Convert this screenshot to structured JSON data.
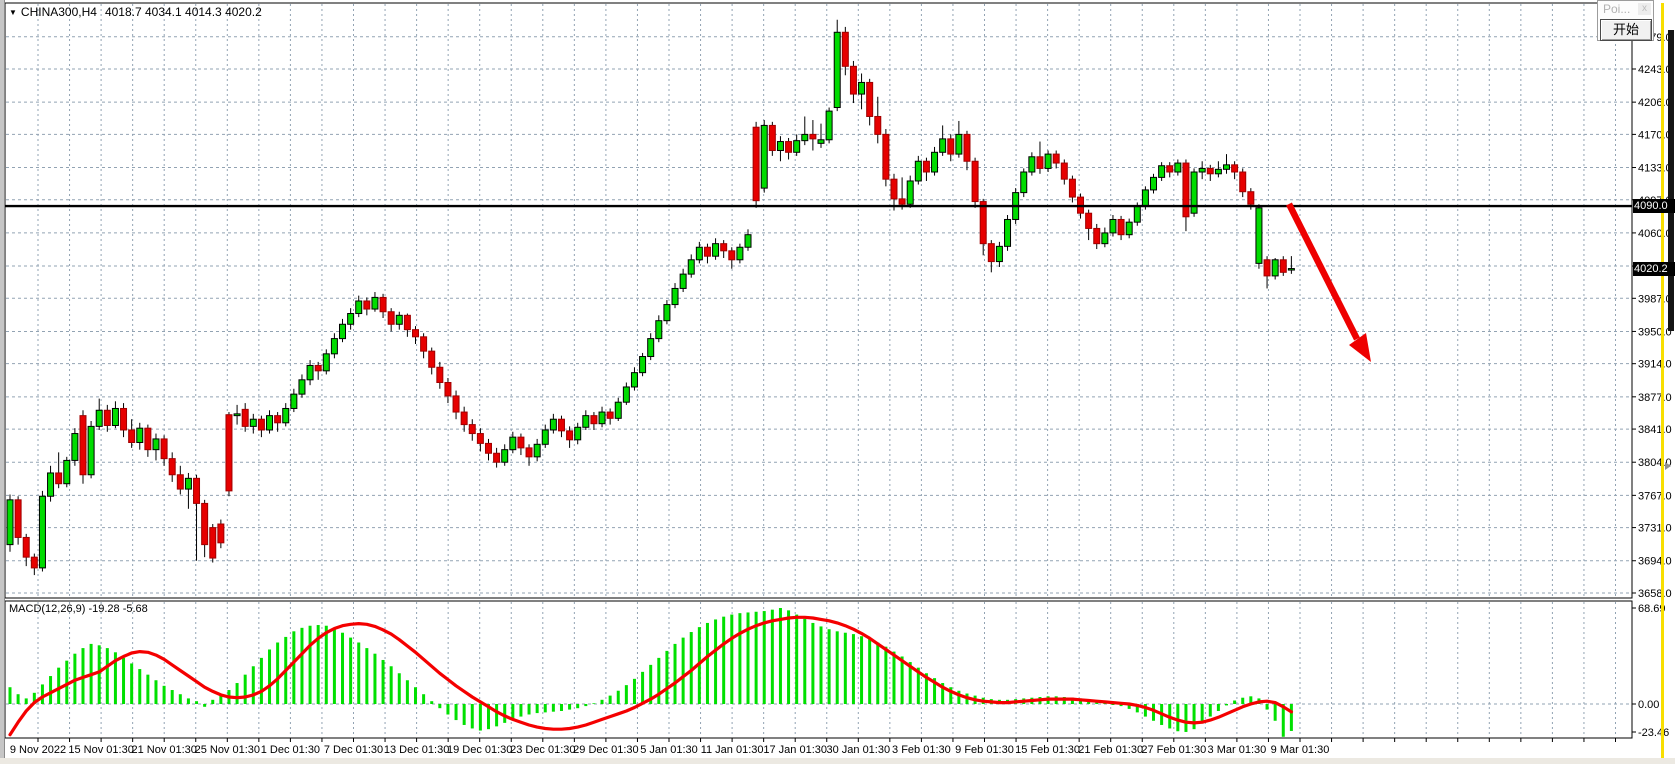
{
  "app": {
    "popup": {
      "title": "Poi...",
      "close": "x",
      "button": "开始"
    }
  },
  "chart": {
    "title": {
      "dropdown": "▼",
      "symbol": "CHINA300,H4",
      "quote": "4018.7 4034.1 4014.3 4020.2"
    },
    "price_axis": {
      "labels": [
        "4279.0",
        "4243.0",
        "4206.0",
        "4170.0",
        "4133.0",
        "4097.0",
        "4060.0",
        "4023.0",
        "3987.0",
        "3950.0",
        "3914.0",
        "3877.0",
        "3841.0",
        "3804.0",
        "3767.0",
        "3731.0",
        "3694.0",
        "3658.0"
      ],
      "line_badge": "4090.0",
      "price_badge": "4020.2"
    },
    "time_axis": {
      "labels": [
        "9 Nov 2022",
        "15 Nov 01:30",
        "21 Nov 01:30",
        "25 Nov 01:30",
        "1 Dec 01:30",
        "7 Dec 01:30",
        "13 Dec 01:30",
        "19 Dec 01:30",
        "23 Dec 01:30",
        "29 Dec 01:30",
        "5 Jan 01:30",
        "11 Jan 01:30",
        "17 Jan 01:30",
        "30 Jan 01:30",
        "3 Feb 01:30",
        "9 Feb 01:30",
        "15 Feb 01:30",
        "21 Feb 01:30",
        "27 Feb 01:30",
        "3 Mar 01:30",
        "9 Mar 01:30"
      ]
    },
    "macd_panel": {
      "label": "MACD(12,26,9) -19.28 -5.68",
      "scale": {
        "max": "68.69",
        "zero": "0.00",
        "min": "-23.46"
      }
    }
  },
  "chart_data": {
    "type": "candlestick",
    "symbol": "CHINA300",
    "timeframe": "H4",
    "last_quote": {
      "open": 4018.7,
      "high": 4034.1,
      "low": 4014.3,
      "close": 4020.2
    },
    "ohlc": [
      [
        3712,
        3768,
        3704,
        3762
      ],
      [
        3762,
        3766,
        3712,
        3720
      ],
      [
        3720,
        3724,
        3688,
        3698
      ],
      [
        3698,
        3702,
        3678,
        3686
      ],
      [
        3686,
        3772,
        3682,
        3766
      ],
      [
        3766,
        3800,
        3760,
        3792
      ],
      [
        3792,
        3815,
        3775,
        3780
      ],
      [
        3780,
        3810,
        3776,
        3806
      ],
      [
        3806,
        3842,
        3800,
        3836
      ],
      [
        3856,
        3862,
        3780,
        3790
      ],
      [
        3790,
        3850,
        3786,
        3844
      ],
      [
        3844,
        3875,
        3840,
        3862
      ],
      [
        3862,
        3868,
        3838,
        3845
      ],
      [
        3845,
        3872,
        3842,
        3864
      ],
      [
        3864,
        3870,
        3832,
        3840
      ],
      [
        3840,
        3852,
        3820,
        3826
      ],
      [
        3826,
        3848,
        3818,
        3842
      ],
      [
        3842,
        3846,
        3810,
        3818
      ],
      [
        3818,
        3836,
        3806,
        3830
      ],
      [
        3830,
        3834,
        3800,
        3808
      ],
      [
        3808,
        3815,
        3782,
        3790
      ],
      [
        3790,
        3800,
        3768,
        3774
      ],
      [
        3774,
        3792,
        3752,
        3786
      ],
      [
        3786,
        3790,
        3694,
        3758
      ],
      [
        3758,
        3762,
        3698,
        3712
      ],
      [
        3731,
        3735,
        3692,
        3697
      ],
      [
        3735,
        3740,
        3708,
        3714
      ],
      [
        3857,
        3860,
        3766,
        3772
      ],
      [
        3856,
        3868,
        3846,
        3858
      ],
      [
        3863,
        3870,
        3838,
        3844
      ],
      [
        3844,
        3858,
        3836,
        3852
      ],
      [
        3852,
        3856,
        3832,
        3840
      ],
      [
        3840,
        3862,
        3836,
        3856
      ],
      [
        3856,
        3860,
        3838,
        3848
      ],
      [
        3848,
        3870,
        3844,
        3864
      ],
      [
        3864,
        3886,
        3860,
        3880
      ],
      [
        3880,
        3902,
        3876,
        3896
      ],
      [
        3896,
        3918,
        3890,
        3912
      ],
      [
        3912,
        3916,
        3896,
        3906
      ],
      [
        3906,
        3930,
        3902,
        3925
      ],
      [
        3925,
        3948,
        3920,
        3942
      ],
      [
        3942,
        3964,
        3938,
        3958
      ],
      [
        3958,
        3976,
        3952,
        3970
      ],
      [
        3970,
        3990,
        3966,
        3984
      ],
      [
        3984,
        3988,
        3968,
        3975
      ],
      [
        3975,
        3994,
        3972,
        3988
      ],
      [
        3988,
        3992,
        3965,
        3972
      ],
      [
        3972,
        3976,
        3950,
        3958
      ],
      [
        3958,
        3972,
        3952,
        3968
      ],
      [
        3968,
        3970,
        3944,
        3952
      ],
      [
        3952,
        3956,
        3936,
        3944
      ],
      [
        3944,
        3948,
        3920,
        3928
      ],
      [
        3928,
        3932,
        3902,
        3910
      ],
      [
        3910,
        3916,
        3886,
        3893
      ],
      [
        3893,
        3898,
        3870,
        3878
      ],
      [
        3878,
        3884,
        3852,
        3860
      ],
      [
        3860,
        3866,
        3838,
        3846
      ],
      [
        3846,
        3852,
        3828,
        3836
      ],
      [
        3836,
        3842,
        3816,
        3825
      ],
      [
        3825,
        3830,
        3806,
        3814
      ],
      [
        3814,
        3820,
        3798,
        3804
      ],
      [
        3804,
        3824,
        3800,
        3818
      ],
      [
        3818,
        3838,
        3814,
        3832
      ],
      [
        3832,
        3836,
        3812,
        3820
      ],
      [
        3820,
        3824,
        3800,
        3810
      ],
      [
        3810,
        3830,
        3805,
        3824
      ],
      [
        3824,
        3846,
        3820,
        3840
      ],
      [
        3840,
        3858,
        3836,
        3852
      ],
      [
        3852,
        3856,
        3832,
        3839
      ],
      [
        3839,
        3844,
        3820,
        3829
      ],
      [
        3829,
        3848,
        3824,
        3843
      ],
      [
        3843,
        3862,
        3840,
        3856
      ],
      [
        3856,
        3860,
        3840,
        3847
      ],
      [
        3847,
        3866,
        3843,
        3860
      ],
      [
        3860,
        3864,
        3846,
        3853
      ],
      [
        3853,
        3876,
        3850,
        3871
      ],
      [
        3871,
        3893,
        3868,
        3888
      ],
      [
        3888,
        3910,
        3884,
        3904
      ],
      [
        3904,
        3926,
        3900,
        3922
      ],
      [
        3922,
        3948,
        3918,
        3942
      ],
      [
        3942,
        3968,
        3938,
        3962
      ],
      [
        3962,
        3985,
        3958,
        3980
      ],
      [
        3980,
        4004,
        3976,
        3998
      ],
      [
        3998,
        4020,
        3994,
        4014
      ],
      [
        4014,
        4036,
        4010,
        4030
      ],
      [
        4030,
        4050,
        4026,
        4044
      ],
      [
        4044,
        4048,
        4026,
        4034
      ],
      [
        4034,
        4054,
        4030,
        4048
      ],
      [
        4048,
        4052,
        4032,
        4040
      ],
      [
        4040,
        4044,
        4020,
        4030
      ],
      [
        4030,
        4048,
        4026,
        4044
      ],
      [
        4044,
        4064,
        4040,
        4058
      ],
      [
        4178,
        4184,
        4088,
        4096
      ],
      [
        4110,
        4186,
        4105,
        4180
      ],
      [
        4180,
        4184,
        4146,
        4152
      ],
      [
        4152,
        4168,
        4140,
        4162
      ],
      [
        4162,
        4166,
        4142,
        4150
      ],
      [
        4150,
        4170,
        4146,
        4163
      ],
      [
        4163,
        4190,
        4158,
        4170
      ],
      [
        4170,
        4186,
        4152,
        4165
      ],
      [
        4160,
        4182,
        4155,
        4164
      ],
      [
        4164,
        4200,
        4160,
        4196
      ],
      [
        4200,
        4298,
        4196,
        4284
      ],
      [
        4284,
        4290,
        4236,
        4246
      ],
      [
        4246,
        4252,
        4205,
        4215
      ],
      [
        4215,
        4238,
        4198,
        4228
      ],
      [
        4228,
        4232,
        4180,
        4190
      ],
      [
        4190,
        4212,
        4160,
        4170
      ],
      [
        4170,
        4176,
        4112,
        4120
      ],
      [
        4120,
        4126,
        4085,
        4098
      ],
      [
        4098,
        4122,
        4086,
        4092
      ],
      [
        4092,
        4124,
        4088,
        4118
      ],
      [
        4118,
        4146,
        4114,
        4140
      ],
      [
        4140,
        4144,
        4118,
        4128
      ],
      [
        4128,
        4156,
        4124,
        4150
      ],
      [
        4150,
        4180,
        4146,
        4165
      ],
      [
        4165,
        4170,
        4140,
        4148
      ],
      [
        4148,
        4185,
        4144,
        4170
      ],
      [
        4170,
        4174,
        4130,
        4140
      ],
      [
        4140,
        4144,
        4088,
        4095
      ],
      [
        4095,
        4098,
        4035,
        4048
      ],
      [
        4048,
        4052,
        4016,
        4028
      ],
      [
        4028,
        4050,
        4022,
        4045
      ],
      [
        4045,
        4080,
        4040,
        4075
      ],
      [
        4075,
        4110,
        4070,
        4105
      ],
      [
        4105,
        4132,
        4100,
        4128
      ],
      [
        4128,
        4150,
        4124,
        4145
      ],
      [
        4145,
        4162,
        4126,
        4132
      ],
      [
        4132,
        4152,
        4128,
        4148
      ],
      [
        4148,
        4152,
        4132,
        4138
      ],
      [
        4138,
        4142,
        4114,
        4120
      ],
      [
        4120,
        4124,
        4094,
        4100
      ],
      [
        4100,
        4104,
        4076,
        4082
      ],
      [
        4082,
        4086,
        4052,
        4065
      ],
      [
        4065,
        4070,
        4042,
        4048
      ],
      [
        4048,
        4066,
        4044,
        4060
      ],
      [
        4060,
        4080,
        4056,
        4075
      ],
      [
        4075,
        4079,
        4052,
        4058
      ],
      [
        4058,
        4076,
        4054,
        4072
      ],
      [
        4072,
        4094,
        4068,
        4090
      ],
      [
        4090,
        4112,
        4086,
        4108
      ],
      [
        4108,
        4126,
        4104,
        4122
      ],
      [
        4122,
        4139,
        4118,
        4135
      ],
      [
        4135,
        4139,
        4122,
        4128
      ],
      [
        4128,
        4142,
        4124,
        4138
      ],
      [
        4138,
        4142,
        4062,
        4078
      ],
      [
        4082,
        4132,
        4078,
        4128
      ],
      [
        4128,
        4140,
        4120,
        4132
      ],
      [
        4132,
        4136,
        4118,
        4126
      ],
      [
        4126,
        4140,
        4122,
        4131
      ],
      [
        4131,
        4148,
        4126,
        4136
      ],
      [
        4136,
        4140,
        4120,
        4128
      ],
      [
        4128,
        4132,
        4100,
        4106
      ],
      [
        4106,
        4110,
        4086,
        4092
      ],
      [
        4026,
        4092,
        4020,
        4088
      ],
      [
        4030,
        4034,
        3998,
        4012
      ],
      [
        4012,
        4032,
        4008,
        4030
      ],
      [
        4030,
        4034,
        4012,
        4016
      ],
      [
        4018.7,
        4034.1,
        4014.3,
        4020.2
      ]
    ],
    "macd": {
      "histogram": [
        12,
        7,
        4,
        8,
        14,
        20,
        26,
        31,
        36,
        40,
        43,
        42,
        40,
        37,
        33,
        29,
        25,
        21,
        17,
        13,
        10,
        7,
        4,
        2,
        -2,
        3,
        6,
        10,
        15,
        21,
        27,
        33,
        39,
        44,
        48,
        52,
        54.5,
        56,
        56.5,
        56,
        54,
        51,
        47.5,
        44,
        40,
        36,
        31.5,
        27,
        22,
        17,
        12,
        7,
        2,
        -3,
        -7.5,
        -11.5,
        -15,
        -17.5,
        -19,
        -18,
        -16,
        -13.5,
        -11,
        -9,
        -7.5,
        -6.5,
        -6,
        -5.5,
        -5,
        -4,
        -3,
        -1.5,
        0.5,
        3,
        6,
        9.5,
        13.5,
        18,
        23,
        28,
        33,
        38,
        43,
        47.5,
        51.5,
        55,
        58,
        60.5,
        62.5,
        64,
        65,
        65.5,
        66,
        66.5,
        67.5,
        68.69,
        67,
        64,
        61,
        58,
        55.5,
        53.5,
        52,
        51,
        50,
        48.5,
        46.5,
        44,
        41,
        37.5,
        34,
        30,
        26,
        22,
        18.5,
        15,
        12,
        9.5,
        7.5,
        6,
        4.5,
        3.5,
        3,
        3,
        3.5,
        4,
        4.5,
        5,
        5.5,
        5.5,
        5,
        4.5,
        4,
        3,
        2,
        1,
        0,
        -1.5,
        -3.5,
        -6,
        -9,
        -12,
        -15,
        -17.5,
        -19.5,
        -20,
        -18,
        -14,
        -9,
        -5,
        -1,
        2.5,
        4.5,
        5.5,
        4,
        -4,
        -12,
        -23.46,
        -19.28
      ],
      "signal": [
        -22,
        -13,
        -5,
        1,
        5,
        8,
        11,
        14,
        17,
        19,
        21,
        23,
        27,
        31,
        34,
        36.5,
        37.5,
        37,
        35,
        32,
        28,
        24,
        20,
        16,
        12,
        9,
        6.5,
        5,
        4.5,
        5,
        6.5,
        9,
        13,
        18,
        24,
        30,
        36,
        42,
        47,
        51,
        54,
        56,
        57,
        57.5,
        57,
        55.5,
        53,
        50,
        46,
        41.5,
        37,
        32,
        27,
        22,
        17.5,
        13,
        9,
        5,
        1.5,
        -2,
        -5.5,
        -8.5,
        -11,
        -13,
        -15,
        -16.5,
        -17.5,
        -18,
        -18,
        -17.5,
        -16.5,
        -15,
        -13,
        -11,
        -9,
        -7,
        -5,
        -2.5,
        0.5,
        3.5,
        7,
        11,
        15,
        19.5,
        24,
        29,
        34,
        38.5,
        43,
        47,
        50.5,
        53.5,
        56,
        58,
        59.5,
        60.5,
        61.5,
        62,
        62,
        61.5,
        60.5,
        59.5,
        58,
        56,
        53.5,
        50.5,
        47,
        43,
        39,
        35,
        31,
        27,
        23,
        19,
        15.5,
        12,
        9,
        6.5,
        4.5,
        3,
        2,
        1.5,
        1,
        1,
        1.5,
        2,
        2.5,
        3,
        3.5,
        3.5,
        3.5,
        3.5,
        3,
        2.5,
        2,
        1.5,
        1,
        0.5,
        0,
        -1,
        -2.5,
        -4.5,
        -7,
        -9.5,
        -11.5,
        -13,
        -13.5,
        -13,
        -11.5,
        -9.5,
        -7,
        -4.5,
        -2,
        0,
        1.5,
        2,
        1,
        -2,
        -5.68
      ],
      "values_shown": {
        "main": -19.28,
        "signal": -5.68
      }
    },
    "annotations": {
      "horizontal_line_price": 4090.0,
      "last_price": 4020.2,
      "arrow": {
        "note": "red down-right arrow after last candle",
        "from_price": 4092,
        "to_price": 3912
      }
    },
    "axis_ranges": {
      "price_min": 3658.0,
      "price_max": 4279.0,
      "macd_min": -23.46,
      "macd_max": 68.69
    },
    "colors": {
      "bull": "#00dc00",
      "bull_border": "#000000",
      "bear": "#e60000",
      "bear_border": "#a00000",
      "histogram": "#00e000",
      "signal_line": "#f40000",
      "grid": "#92a3b3",
      "axis_text": "#000000",
      "hline": "#000000",
      "arrow": "#ee0000",
      "badge_bg": "#000000",
      "badge_text": "#ffffff",
      "yellow_strip": "#f8de00"
    }
  }
}
